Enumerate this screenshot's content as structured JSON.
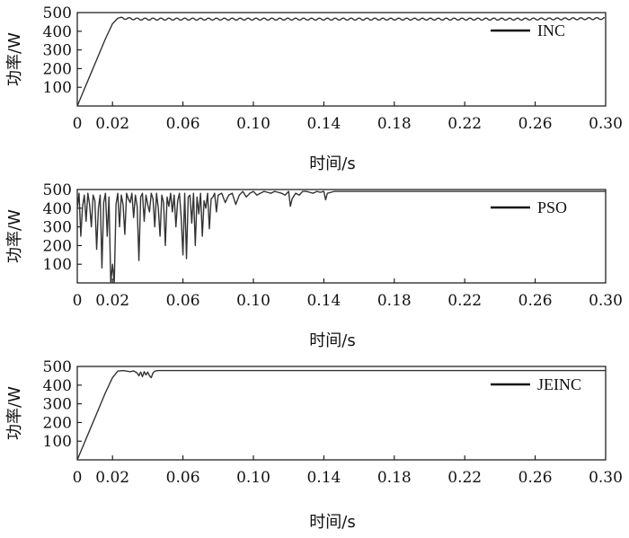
{
  "chart_data": [
    {
      "type": "line",
      "xlabel": "时间/s",
      "ylabel": "功率/W",
      "xlim": [
        0,
        0.3
      ],
      "ylim": [
        0,
        500
      ],
      "xticks": [
        "0",
        "0.02",
        "0.06",
        "0.10",
        "0.14",
        "0.18",
        "0.22",
        "0.26",
        "0.30"
      ],
      "yticks": [
        "100",
        "200",
        "300",
        "400",
        "500"
      ],
      "legend_position": "top-right",
      "grid": false,
      "series": [
        {
          "name": "INC",
          "x": [
            0,
            0.004,
            0.008,
            0.012,
            0.016,
            0.02,
            0.023,
            0.025,
            0.035,
            0.05,
            0.1,
            0.15,
            0.2,
            0.25,
            0.3
          ],
          "y": [
            0,
            90,
            180,
            270,
            360,
            440,
            470,
            470,
            465,
            465,
            465,
            465,
            465,
            465,
            468
          ],
          "oscillation": {
            "start": 0.025,
            "amplitude": 10,
            "period": 0.0045
          }
        }
      ]
    },
    {
      "type": "line",
      "xlabel": "时间/s",
      "ylabel": "功率/W",
      "xlim": [
        0,
        0.3
      ],
      "ylim": [
        0,
        500
      ],
      "xticks": [
        "0",
        "0.02",
        "0.06",
        "0.10",
        "0.14",
        "0.18",
        "0.22",
        "0.26",
        "0.30"
      ],
      "yticks": [
        "100",
        "200",
        "300",
        "400",
        "500"
      ],
      "legend_position": "top-right",
      "grid": false,
      "series": [
        {
          "name": "PSO",
          "x": [
            0,
            0.001,
            0.002,
            0.003,
            0.004,
            0.005,
            0.006,
            0.007,
            0.008,
            0.009,
            0.01,
            0.011,
            0.012,
            0.013,
            0.014,
            0.015,
            0.016,
            0.017,
            0.018,
            0.019,
            0.02,
            0.021,
            0.022,
            0.023,
            0.024,
            0.025,
            0.026,
            0.027,
            0.028,
            0.029,
            0.03,
            0.031,
            0.032,
            0.033,
            0.034,
            0.035,
            0.036,
            0.037,
            0.038,
            0.039,
            0.04,
            0.041,
            0.042,
            0.043,
            0.044,
            0.045,
            0.046,
            0.047,
            0.048,
            0.049,
            0.05,
            0.051,
            0.052,
            0.053,
            0.054,
            0.055,
            0.056,
            0.057,
            0.058,
            0.059,
            0.06,
            0.061,
            0.062,
            0.063,
            0.064,
            0.065,
            0.066,
            0.067,
            0.068,
            0.069,
            0.07,
            0.071,
            0.072,
            0.073,
            0.074,
            0.075,
            0.076,
            0.077,
            0.078,
            0.079,
            0.08,
            0.082,
            0.084,
            0.086,
            0.088,
            0.09,
            0.092,
            0.094,
            0.096,
            0.098,
            0.1,
            0.102,
            0.104,
            0.106,
            0.108,
            0.11,
            0.112,
            0.114,
            0.116,
            0.118,
            0.12,
            0.121,
            0.122,
            0.124,
            0.126,
            0.128,
            0.13,
            0.132,
            0.134,
            0.136,
            0.138,
            0.14,
            0.141,
            0.142,
            0.144,
            0.146,
            0.15,
            0.155,
            0.16,
            0.17,
            0.18,
            0.2,
            0.22,
            0.24,
            0.26,
            0.28,
            0.3
          ],
          "y": [
            400,
            480,
            250,
            410,
            470,
            330,
            480,
            420,
            300,
            470,
            440,
            180,
            400,
            470,
            80,
            430,
            480,
            250,
            460,
            0,
            100,
            0,
            420,
            480,
            300,
            470,
            420,
            260,
            480,
            450,
            430,
            480,
            350,
            470,
            410,
            120,
            460,
            480,
            330,
            470,
            420,
            380,
            480,
            450,
            300,
            480,
            400,
            250,
            470,
            430,
            200,
            460,
            410,
            480,
            380,
            470,
            300,
            440,
            480,
            350,
            150,
            480,
            130,
            460,
            470,
            320,
            480,
            200,
            460,
            370,
            480,
            250,
            440,
            400,
            480,
            290,
            450,
            460,
            480,
            380,
            470,
            480,
            430,
            470,
            480,
            420,
            470,
            490,
            460,
            480,
            490,
            470,
            480,
            490,
            485,
            480,
            490,
            485,
            480,
            470,
            490,
            410,
            450,
            480,
            470,
            490,
            490,
            485,
            480,
            490,
            485,
            490,
            445,
            480,
            485,
            490,
            490,
            490,
            490,
            490,
            490,
            490,
            490,
            490,
            490,
            490,
            490
          ]
        }
      ]
    },
    {
      "type": "line",
      "xlabel": "时间/s",
      "ylabel": "功率/W",
      "xlim": [
        0,
        0.3
      ],
      "ylim": [
        0,
        500
      ],
      "xticks": [
        "0",
        "0.02",
        "0.06",
        "0.10",
        "0.14",
        "0.18",
        "0.22",
        "0.26",
        "0.30"
      ],
      "yticks": [
        "100",
        "200",
        "300",
        "400",
        "500"
      ],
      "legend_position": "top-right",
      "grid": false,
      "series": [
        {
          "name": "JEINC",
          "x": [
            0,
            0.004,
            0.008,
            0.012,
            0.016,
            0.02,
            0.023,
            0.026,
            0.03,
            0.032,
            0.034,
            0.035,
            0.036,
            0.037,
            0.038,
            0.039,
            0.04,
            0.041,
            0.042,
            0.043,
            0.044,
            0.046,
            0.06,
            0.1,
            0.15,
            0.2,
            0.25,
            0.3
          ],
          "y": [
            0,
            90,
            180,
            270,
            360,
            440,
            475,
            478,
            472,
            476,
            465,
            450,
            470,
            445,
            472,
            455,
            470,
            450,
            440,
            465,
            475,
            478,
            478,
            478,
            478,
            478,
            478,
            478
          ]
        }
      ]
    }
  ]
}
